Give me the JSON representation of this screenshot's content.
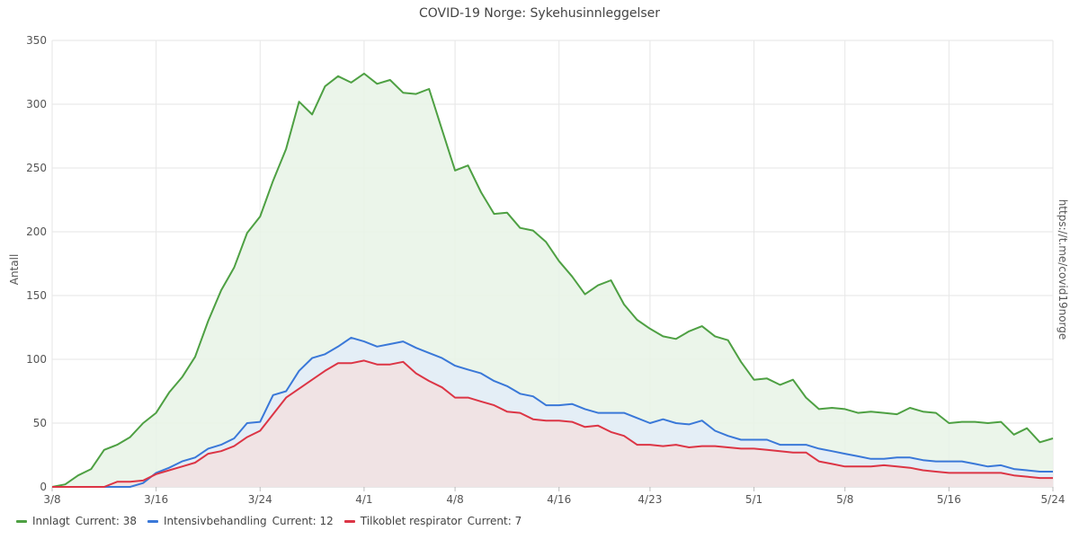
{
  "chart_data": {
    "type": "area",
    "title": "COVID-19 Norge: Sykehusinnleggelser",
    "ylabel": "Antall",
    "side_label": "https://t.me/covid19norge",
    "ylim": [
      0,
      350
    ],
    "yticks": [
      "0",
      "50",
      "100",
      "150",
      "200",
      "250",
      "300",
      "350"
    ],
    "xlim": [
      "2020-03-08",
      "2020-05-24"
    ],
    "xticks": [
      {
        "date": "2020-03-08",
        "label": "3/8"
      },
      {
        "date": "2020-03-16",
        "label": "3/16"
      },
      {
        "date": "2020-03-24",
        "label": "3/24"
      },
      {
        "date": "2020-04-01",
        "label": "4/1"
      },
      {
        "date": "2020-04-08",
        "label": "4/8"
      },
      {
        "date": "2020-04-16",
        "label": "4/16"
      },
      {
        "date": "2020-04-23",
        "label": "4/23"
      },
      {
        "date": "2020-05-01",
        "label": "5/1"
      },
      {
        "date": "2020-05-08",
        "label": "5/8"
      },
      {
        "date": "2020-05-16",
        "label": "5/16"
      },
      {
        "date": "2020-05-24",
        "label": "5/24"
      }
    ],
    "grid": true,
    "legend_position": "bottom-left",
    "x": [
      "2020-03-08",
      "2020-03-09",
      "2020-03-10",
      "2020-03-11",
      "2020-03-12",
      "2020-03-13",
      "2020-03-14",
      "2020-03-15",
      "2020-03-16",
      "2020-03-17",
      "2020-03-18",
      "2020-03-19",
      "2020-03-20",
      "2020-03-21",
      "2020-03-22",
      "2020-03-23",
      "2020-03-24",
      "2020-03-25",
      "2020-03-26",
      "2020-03-27",
      "2020-03-28",
      "2020-03-29",
      "2020-03-30",
      "2020-03-31",
      "2020-04-01",
      "2020-04-02",
      "2020-04-03",
      "2020-04-04",
      "2020-04-05",
      "2020-04-06",
      "2020-04-07",
      "2020-04-08",
      "2020-04-09",
      "2020-04-10",
      "2020-04-11",
      "2020-04-12",
      "2020-04-13",
      "2020-04-14",
      "2020-04-15",
      "2020-04-16",
      "2020-04-17",
      "2020-04-18",
      "2020-04-19",
      "2020-04-20",
      "2020-04-21",
      "2020-04-22",
      "2020-04-23",
      "2020-04-24",
      "2020-04-25",
      "2020-04-26",
      "2020-04-27",
      "2020-04-28",
      "2020-04-29",
      "2020-04-30",
      "2020-05-01",
      "2020-05-02",
      "2020-05-03",
      "2020-05-04",
      "2020-05-05",
      "2020-05-06",
      "2020-05-07",
      "2020-05-08",
      "2020-05-09",
      "2020-05-10",
      "2020-05-11",
      "2020-05-12",
      "2020-05-13",
      "2020-05-14",
      "2020-05-15",
      "2020-05-16",
      "2020-05-17",
      "2020-05-18",
      "2020-05-19",
      "2020-05-20",
      "2020-05-21",
      "2020-05-22",
      "2020-05-23",
      "2020-05-24"
    ],
    "series": [
      {
        "name": "Innlagt",
        "current_label": "Current: 38",
        "color": "#4ea043",
        "fill": "#e8f3e6",
        "values": [
          0,
          2,
          9,
          14,
          29,
          33,
          39,
          50,
          58,
          74,
          86,
          102,
          130,
          154,
          172,
          199,
          212,
          240,
          265,
          302,
          292,
          314,
          322,
          317,
          324,
          316,
          319,
          309,
          308,
          312,
          280,
          248,
          252,
          231,
          214,
          215,
          203,
          201,
          192,
          177,
          165,
          151,
          158,
          162,
          143,
          131,
          124,
          118,
          116,
          122,
          126,
          118,
          115,
          98,
          84,
          85,
          80,
          84,
          70,
          61,
          62,
          61,
          58,
          59,
          58,
          57,
          62,
          59,
          58,
          50,
          51,
          51,
          50,
          51,
          41,
          46,
          35,
          38
        ]
      },
      {
        "name": "Intensivbehandling",
        "current_label": "Current: 12",
        "color": "#3a78d8",
        "fill": "#e3ecf8",
        "values": [
          0,
          0,
          0,
          0,
          0,
          0,
          0,
          3,
          11,
          15,
          20,
          23,
          30,
          33,
          38,
          50,
          51,
          72,
          75,
          91,
          101,
          104,
          110,
          117,
          114,
          110,
          112,
          114,
          109,
          105,
          101,
          95,
          92,
          89,
          83,
          79,
          73,
          71,
          64,
          64,
          65,
          61,
          58,
          58,
          58,
          54,
          50,
          53,
          50,
          49,
          52,
          44,
          40,
          37,
          37,
          37,
          33,
          33,
          33,
          30,
          28,
          26,
          24,
          22,
          22,
          23,
          23,
          21,
          20,
          20,
          20,
          18,
          16,
          17,
          14,
          13,
          12,
          12
        ]
      },
      {
        "name": "Tilkoblet respirator",
        "current_label": "Current: 7",
        "color": "#dc3545",
        "fill": "#f2e1e1",
        "values": [
          0,
          0,
          0,
          0,
          0,
          4,
          4,
          5,
          10,
          13,
          16,
          19,
          26,
          28,
          32,
          39,
          44,
          57,
          70,
          77,
          84,
          91,
          97,
          97,
          99,
          96,
          96,
          98,
          89,
          83,
          78,
          70,
          70,
          67,
          64,
          59,
          58,
          53,
          52,
          52,
          51,
          47,
          48,
          43,
          40,
          33,
          33,
          32,
          33,
          31,
          32,
          32,
          31,
          30,
          30,
          29,
          28,
          27,
          27,
          20,
          18,
          16,
          16,
          16,
          17,
          16,
          15,
          13,
          12,
          11,
          11,
          11,
          11,
          11,
          9,
          8,
          7,
          7
        ]
      }
    ]
  }
}
